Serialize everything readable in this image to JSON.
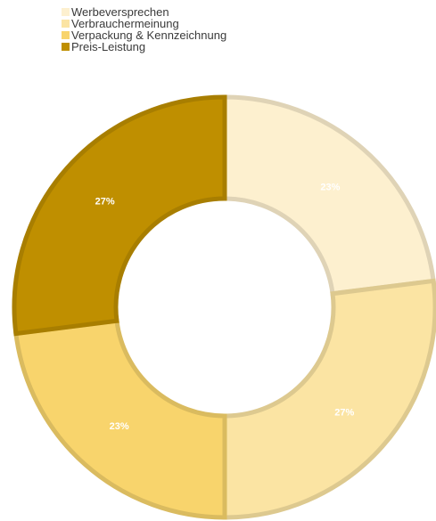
{
  "chart_data": {
    "type": "pie",
    "donut": true,
    "legend_position": "top-left",
    "categories": [
      "Werbeversprechen",
      "Verbrauchermeinung",
      "Verpackung & Kennzeichnung",
      "Preis-Leistung"
    ],
    "values": [
      23,
      27,
      23,
      27
    ],
    "data_labels": [
      "23%",
      "27%",
      "23%",
      "27%"
    ],
    "colors": [
      "#fdf0cf",
      "#fbe4a3",
      "#f8d46c",
      "#bf8f00"
    ]
  }
}
